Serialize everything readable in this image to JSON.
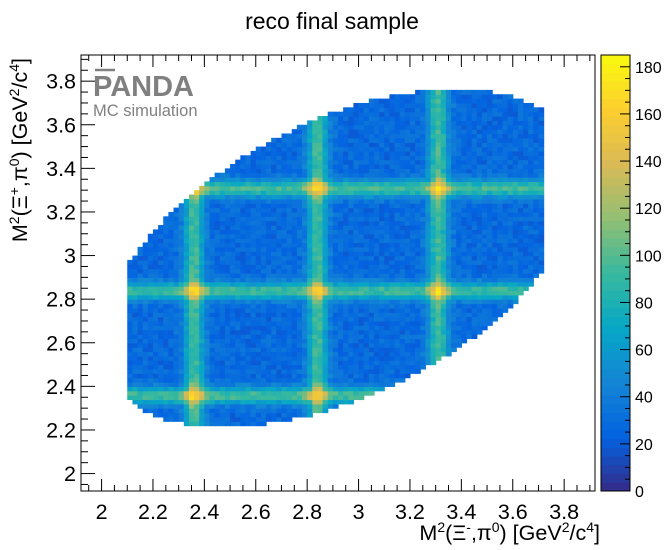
{
  "chart_data": {
    "type": "heatmap",
    "title": "reco final sample",
    "xlabel": {
      "prefix": "M",
      "sup1": "2",
      "mid": "(Ξ",
      "sup2": "-",
      "mid2": ",π",
      "sup3": "0",
      "suffix": ") [GeV",
      "sup4": "2",
      "mid3": "/c",
      "sup5": "4",
      "end": "]"
    },
    "ylabel": {
      "prefix": "M",
      "sup1": "2",
      "mid": "(Ξ",
      "sup2": "+",
      "mid2": ",π",
      "sup3": "0",
      "suffix": ") [GeV",
      "sup4": "2",
      "mid3": "/c",
      "sup5": "4",
      "end": "]"
    },
    "xlim": [
      1.92,
      3.92
    ],
    "ylim": [
      1.92,
      3.92
    ],
    "x_ticks": [
      {
        "v": 2,
        "label": "2"
      },
      {
        "v": 2.2,
        "label": "2.2"
      },
      {
        "v": 2.4,
        "label": "2.4"
      },
      {
        "v": 2.6,
        "label": "2.6"
      },
      {
        "v": 2.8,
        "label": "2.8"
      },
      {
        "v": 3,
        "label": "3"
      },
      {
        "v": 3.2,
        "label": "3.2"
      },
      {
        "v": 3.4,
        "label": "3.4"
      },
      {
        "v": 3.6,
        "label": "3.6"
      },
      {
        "v": 3.8,
        "label": "3.8"
      }
    ],
    "y_ticks": [
      {
        "v": 2,
        "label": "2"
      },
      {
        "v": 2.2,
        "label": "2.2"
      },
      {
        "v": 2.4,
        "label": "2.4"
      },
      {
        "v": 2.6,
        "label": "2.6"
      },
      {
        "v": 2.8,
        "label": "2.8"
      },
      {
        "v": 3,
        "label": "3"
      },
      {
        "v": 3.2,
        "label": "3.2"
      },
      {
        "v": 3.4,
        "label": "3.4"
      },
      {
        "v": 3.6,
        "label": "3.6"
      },
      {
        "v": 3.8,
        "label": "3.8"
      }
    ],
    "zlim": [
      0,
      185
    ],
    "z_ticks": [
      {
        "v": 0,
        "label": "0"
      },
      {
        "v": 20,
        "label": "20"
      },
      {
        "v": 40,
        "label": "40"
      },
      {
        "v": 60,
        "label": "60"
      },
      {
        "v": 80,
        "label": "80"
      },
      {
        "v": 100,
        "label": "100"
      },
      {
        "v": 120,
        "label": "120"
      },
      {
        "v": 140,
        "label": "140"
      },
      {
        "v": 160,
        "label": "160"
      },
      {
        "v": 180,
        "label": "180"
      }
    ],
    "bands": {
      "vertical_x": [
        2.36,
        2.84,
        3.31
      ],
      "horizontal_y": [
        2.36,
        2.84,
        3.31
      ],
      "baseline_counts": 38,
      "band_peak_counts": 95,
      "crossing_peak_counts": 175
    },
    "annotations": {
      "logo": "PANDA",
      "subtitle": "MC simulation"
    }
  },
  "colors": {
    "palette": [
      "#352a87",
      "#0363e1",
      "#1485d4",
      "#06a7c6",
      "#38b99e",
      "#92bf73",
      "#d9ba56",
      "#fcce2e",
      "#f9fb0e"
    ],
    "logo": "#808080",
    "frame": "#000000"
  }
}
